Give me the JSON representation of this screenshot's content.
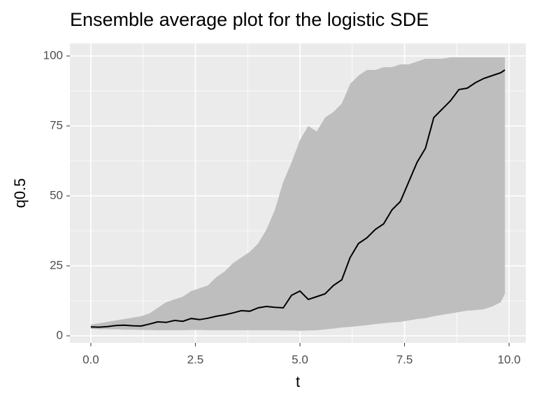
{
  "chart_data": {
    "type": "line",
    "title": "Ensemble average plot for the logistic SDE",
    "x_label": "t",
    "y_label": "q0.5",
    "x": [
      0,
      0.2,
      0.4,
      0.6,
      0.8,
      1.0,
      1.2,
      1.4,
      1.6,
      1.8,
      2.0,
      2.2,
      2.4,
      2.6,
      2.8,
      3.0,
      3.2,
      3.4,
      3.6,
      3.8,
      4.0,
      4.2,
      4.4,
      4.6,
      4.8,
      5.0,
      5.2,
      5.4,
      5.6,
      5.8,
      6.0,
      6.2,
      6.4,
      6.6,
      6.8,
      7.0,
      7.2,
      7.4,
      7.6,
      7.8,
      8.0,
      8.2,
      8.4,
      8.6,
      8.8,
      9.0,
      9.2,
      9.4,
      9.6,
      9.8,
      9.9
    ],
    "values": [
      3.2,
      3.1,
      3.3,
      3.7,
      3.8,
      3.6,
      3.5,
      4.2,
      5.0,
      4.8,
      5.5,
      5.2,
      6.2,
      5.8,
      6.3,
      7.0,
      7.5,
      8.2,
      9.0,
      8.8,
      10.0,
      10.5,
      10.2,
      10.0,
      14.5,
      16.0,
      13.0,
      14.0,
      15.0,
      18.0,
      20.0,
      28.0,
      33.0,
      35.0,
      38.0,
      40.0,
      45.0,
      48.0,
      55.0,
      62.0,
      67.0,
      78.0,
      81.0,
      84.0,
      88.0,
      88.5,
      90.5,
      92.0,
      93.0,
      94.0,
      95.0
    ],
    "ribbon_upper": [
      4,
      4.5,
      5,
      5.5,
      6,
      6.5,
      7,
      8,
      10,
      12,
      13,
      14,
      16,
      17,
      18,
      21,
      23,
      26,
      28,
      30,
      33,
      38,
      45,
      55,
      62,
      70,
      75,
      73,
      78,
      80,
      83,
      90,
      93,
      95,
      95,
      96,
      96,
      97,
      97,
      98,
      99,
      99,
      99,
      99.5,
      99.5,
      99.5,
      99.5,
      99.5,
      99.5,
      99.5,
      99.5
    ],
    "ribbon_lower": [
      2.5,
      2.4,
      2.3,
      2.3,
      2.2,
      2.2,
      2.1,
      2.1,
      2.0,
      2.0,
      2.0,
      2.0,
      2.1,
      2.1,
      2.0,
      2.0,
      2.0,
      2.0,
      2.0,
      2.0,
      2.0,
      2.0,
      2.0,
      1.9,
      1.9,
      1.8,
      1.9,
      2.0,
      2.3,
      2.6,
      3.0,
      3.2,
      3.5,
      3.8,
      4.2,
      4.5,
      4.8,
      5.0,
      5.5,
      6.0,
      6.3,
      7.0,
      7.5,
      8.0,
      8.5,
      9.0,
      9.2,
      9.5,
      10.5,
      12.0,
      15.0
    ],
    "color": "#000000",
    "ribbon_color": "#bebebe",
    "xlim": [
      -0.5,
      10.4
    ],
    "ylim": [
      -2.5,
      104.5
    ],
    "xticks": [
      {
        "value": 0,
        "label": "0.0"
      },
      2.5,
      {
        "value": 5,
        "label": "5.0"
      },
      7.5,
      {
        "value": 10,
        "label": "10.0"
      }
    ],
    "yticks": [
      0,
      25,
      50,
      75,
      100
    ],
    "grid": true
  }
}
